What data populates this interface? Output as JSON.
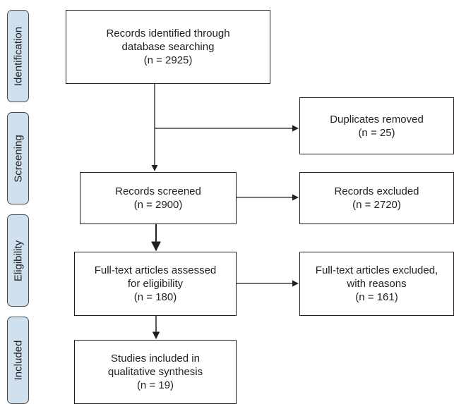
{
  "phases": {
    "identification": "Identification",
    "screening": "Screening",
    "eligibility": "Eligibility",
    "included": "Included"
  },
  "boxes": {
    "identified": "Records identified through\ndatabase searching\n(n = 2925)",
    "duplicates": "Duplicates removed\n(n = 25)",
    "screened": "Records screened\n(n = 2900)",
    "excluded": "Records excluded\n(n = 2720)",
    "fulltext": "Full-text articles assessed\nfor eligibility\n(n = 180)",
    "fulltext_excluded": "Full-text articles excluded,\nwith reasons\n(n = 161)",
    "included": "Studies included in\nqualitative synthesis\n(n = 19)"
  }
}
